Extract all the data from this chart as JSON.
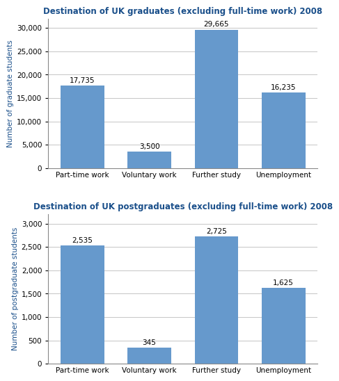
{
  "grad_title": "Destination of UK graduates (excluding full-time work) 2008",
  "postgrad_title": "Destination of UK postgraduates (excluding full-time work) 2008",
  "categories": [
    "Part-time work",
    "Voluntary work",
    "Further study",
    "Unemployment"
  ],
  "grad_values": [
    17735,
    3500,
    29665,
    16235
  ],
  "grad_labels": [
    "17,735",
    "3,500",
    "29,665",
    "16,235"
  ],
  "postgrad_values": [
    2535,
    345,
    2725,
    1625
  ],
  "postgrad_labels": [
    "2,535",
    "345",
    "2,725",
    "1,625"
  ],
  "bar_color": "#6699cc",
  "grad_ylabel": "Number of graduate students",
  "postgrad_ylabel": "Number of postgraduate students",
  "grad_ylim": [
    0,
    32000
  ],
  "postgrad_ylim": [
    0,
    3200
  ],
  "grad_yticks": [
    0,
    5000,
    10000,
    15000,
    20000,
    25000,
    30000
  ],
  "postgrad_yticks": [
    0,
    500,
    1000,
    1500,
    2000,
    2500,
    3000
  ],
  "title_color": "#1a4f8a",
  "ylabel_color": "#1a4f8a",
  "title_fontsize": 8.5,
  "label_fontsize": 7.5,
  "ylabel_fontsize": 7.5,
  "tick_fontsize": 7.5,
  "background_color": "#ffffff",
  "grid_color": "#bbbbbb"
}
